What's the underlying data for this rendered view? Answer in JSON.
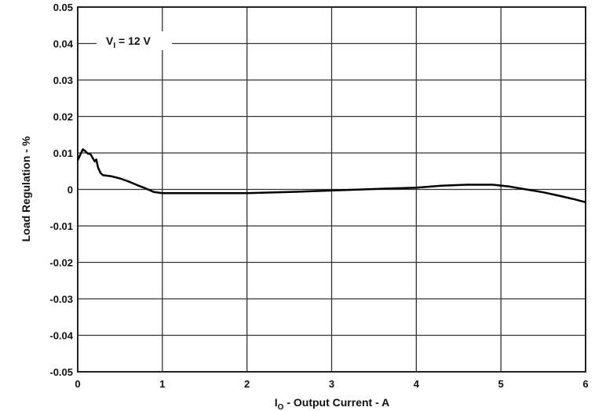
{
  "chart_data": {
    "type": "line",
    "title": "",
    "xlabel": "I_O - Output Current - A",
    "xlabel_main": "I",
    "xlabel_sub": "O",
    "xlabel_rest": " - Output Current - A",
    "ylabel": "Load Regulation - %",
    "xlim": [
      0,
      6
    ],
    "ylim": [
      -0.05,
      0.05
    ],
    "xticks": [
      "0",
      "1",
      "2",
      "3",
      "4",
      "5",
      "6"
    ],
    "yticks": [
      "0.05",
      "0.04",
      "0.03",
      "0.02",
      "0.01",
      "0",
      "-0.01",
      "-0.02",
      "-0.03",
      "-0.04",
      "-0.05"
    ],
    "grid": true,
    "annotation": {
      "main": "V",
      "sub": "I",
      "rest": " = 12 V"
    },
    "series": [
      {
        "name": "VI = 12 V",
        "x": [
          0,
          0.03,
          0.06,
          0.09,
          0.12,
          0.15,
          0.18,
          0.2,
          0.22,
          0.24,
          0.27,
          0.3,
          0.4,
          0.5,
          0.6,
          0.7,
          0.8,
          0.9,
          1.0,
          1.5,
          2.0,
          2.5,
          3.0,
          3.5,
          4.0,
          4.3,
          4.6,
          4.9,
          5.1,
          5.3,
          5.5,
          5.7,
          5.85,
          6.0
        ],
        "y": [
          0.008,
          0.0095,
          0.011,
          0.0105,
          0.0098,
          0.0097,
          0.0085,
          0.0077,
          0.0082,
          0.006,
          0.0045,
          0.0039,
          0.0036,
          0.003,
          0.0022,
          0.0012,
          0.0003,
          -0.0007,
          -0.001,
          -0.001,
          -0.001,
          -0.0007,
          -0.0003,
          0.0001,
          0.0005,
          0.001,
          0.0013,
          0.0013,
          0.0008,
          0.0,
          -0.0008,
          -0.0018,
          -0.0026,
          -0.0035
        ]
      }
    ]
  }
}
